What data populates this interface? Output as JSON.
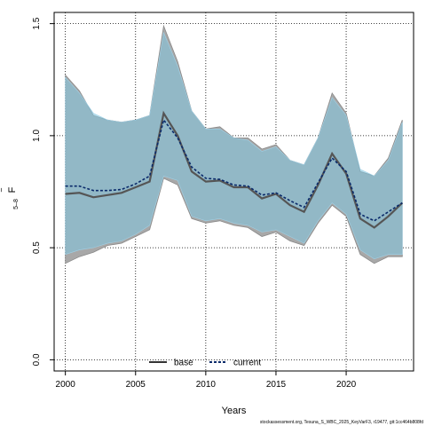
{
  "chart_data": {
    "type": "line",
    "xlabel": "Years",
    "ylabel": "F",
    "ylabel_bar": "‾",
    "ylabel_sub": "5–8",
    "xlim": [
      1999.2,
      2024.8
    ],
    "ylim": [
      -0.05,
      1.55
    ],
    "xticks": [
      2000,
      2005,
      2010,
      2015,
      2020
    ],
    "yticks": [
      0.0,
      0.5,
      1.0,
      1.5
    ],
    "xtick_labels": [
      "2000",
      "2005",
      "2010",
      "2015",
      "2020"
    ],
    "ytick_labels": [
      "0.0",
      "0.5",
      "1.0",
      "1.5"
    ],
    "grid": true,
    "legend_position": "bottom",
    "x": [
      2000,
      2001,
      2002,
      2003,
      2004,
      2005,
      2006,
      2007,
      2008,
      2009,
      2010,
      2011,
      2012,
      2013,
      2014,
      2015,
      2016,
      2017,
      2018,
      2019,
      2020,
      2021,
      2022,
      2023,
      2024
    ],
    "series": [
      {
        "name": "base",
        "color": "#333333",
        "line_color": "#555555",
        "band_color": "#a8a8a8",
        "values": [
          0.74,
          0.745,
          0.725,
          0.735,
          0.745,
          0.77,
          0.795,
          1.1,
          1.0,
          0.84,
          0.795,
          0.8,
          0.77,
          0.77,
          0.72,
          0.74,
          0.69,
          0.66,
          0.78,
          0.92,
          0.83,
          0.63,
          0.59,
          0.64,
          0.7
        ],
        "lower": [
          0.43,
          0.46,
          0.48,
          0.51,
          0.52,
          0.55,
          0.58,
          0.81,
          0.78,
          0.63,
          0.61,
          0.62,
          0.6,
          0.59,
          0.55,
          0.57,
          0.53,
          0.51,
          0.61,
          0.69,
          0.64,
          0.47,
          0.43,
          0.46,
          0.46
        ],
        "upper": [
          1.27,
          1.2,
          1.09,
          1.07,
          1.06,
          1.07,
          1.09,
          1.49,
          1.33,
          1.11,
          1.03,
          1.04,
          0.99,
          0.99,
          0.94,
          0.96,
          0.89,
          0.87,
          0.99,
          1.19,
          1.1,
          0.84,
          0.82,
          0.9,
          1.07
        ]
      },
      {
        "name": "current",
        "color": "#0a2a6a",
        "band_color": "#7fc4df",
        "values": [
          0.775,
          0.775,
          0.755,
          0.755,
          0.76,
          0.785,
          0.82,
          1.07,
          0.99,
          0.86,
          0.81,
          0.805,
          0.78,
          0.775,
          0.735,
          0.745,
          0.71,
          0.68,
          0.79,
          0.9,
          0.84,
          0.65,
          0.62,
          0.66,
          0.7
        ],
        "lower": [
          0.47,
          0.49,
          0.5,
          0.52,
          0.53,
          0.56,
          0.6,
          0.82,
          0.8,
          0.64,
          0.62,
          0.63,
          0.61,
          0.6,
          0.57,
          0.58,
          0.55,
          0.52,
          0.62,
          0.7,
          0.65,
          0.49,
          0.45,
          0.47,
          0.47
        ],
        "upper": [
          1.26,
          1.19,
          1.1,
          1.07,
          1.06,
          1.07,
          1.09,
          1.46,
          1.31,
          1.11,
          1.03,
          1.03,
          0.99,
          0.98,
          0.93,
          0.95,
          0.89,
          0.87,
          0.99,
          1.17,
          1.09,
          0.85,
          0.82,
          0.89,
          1.06
        ]
      }
    ]
  },
  "footer": "stockassessment.org, Tesuna_S_WBC_2025_KeyVarF3, r19477, git:1cc464b808fd"
}
